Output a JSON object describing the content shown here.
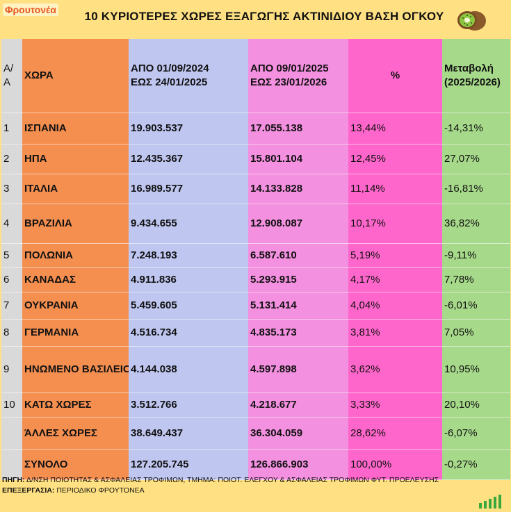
{
  "header": {
    "logo": "Φρουτονέα",
    "title": "10 ΚΥΡΙΟΤΕΡΕΣ ΧΩΡΕΣ ΕΞΑΓΩΓΗΣ ΑΚΤΙΝΙΔΙΟΥ ΒΑΣΗ ΟΓΚΟΥ",
    "icon": "kiwi-icon"
  },
  "table": {
    "columns": {
      "rank": "Α/Α",
      "country": "ΧΩΡΑ",
      "period1_line1": "ΑΠΟ 01/09/2024",
      "period1_line2": "ΕΩΣ 24/01/2025",
      "period2_line1": "ΑΠΟ 09/01/2025",
      "period2_line2": "ΕΩΣ 23/01/2026",
      "share": "%",
      "change_line1": "Μεταβολή",
      "change_line2": "(2025/2026)"
    },
    "rows": [
      {
        "rank": "1",
        "country": "ΙΣΠΑΝΙΑ",
        "p1": "19.903.537",
        "p2": "17.055.138",
        "share": "13,44%",
        "change": "-14,31%"
      },
      {
        "rank": "2",
        "country": "ΗΠΑ",
        "p1": "12.435.367",
        "p2": "15.801.104",
        "share": "12,45%",
        "change": "27,07%"
      },
      {
        "rank": "3",
        "country": "ΙΤΑΛΙΑ",
        "p1": "16.989.577",
        "p2": "14.133.828",
        "share": "11,14%",
        "change": "-16,81%"
      },
      {
        "rank": "4",
        "country": "ΒΡΑΖΙΛΙΑ",
        "p1": "9.434.655",
        "p2": "12.908.087",
        "share": "10,17%",
        "change": "36,82%"
      },
      {
        "rank": "5",
        "country": "ΠΟΛΩΝΙΑ",
        "p1": "7.248.193",
        "p2": "6.587.610",
        "share": "5,19%",
        "change": "-9,11%"
      },
      {
        "rank": "6",
        "country": "ΚΑΝΑΔΑΣ",
        "p1": "4.911.836",
        "p2": "5.293.915",
        "share": "4,17%",
        "change": "7,78%"
      },
      {
        "rank": "7",
        "country": "ΟΥΚΡΑΝΙΑ",
        "p1": "5.459.605",
        "p2": "5.131.414",
        "share": "4,04%",
        "change": "-6,01%"
      },
      {
        "rank": "8",
        "country": "ΓΕΡΜΑΝΙΑ",
        "p1": "4.516.734",
        "p2": "4.835.173",
        "share": "3,81%",
        "change": "7,05%"
      },
      {
        "rank": "9",
        "country": "ΗΝΩΜΕΝΟ ΒΑΣΙΛΕΙΟ",
        "p1": "4.144.038",
        "p2": "4.597.898",
        "share": "3,62%",
        "change": "10,95%"
      },
      {
        "rank": "10",
        "country": "ΚΑΤΩ ΧΩΡΕΣ",
        "p1": "3.512.766",
        "p2": "4.218.677",
        "share": "3,33%",
        "change": "20,10%"
      },
      {
        "rank": "",
        "country": "ΆΛΛΕΣ ΧΩΡΕΣ",
        "p1": "38.649.437",
        "p2": "36.304.059",
        "share": "28,62%",
        "change": "-6,07%"
      },
      {
        "rank": "",
        "country": "ΣΥΝΟΛΟ",
        "p1": "127.205.745",
        "p2": "126.866.903",
        "share": "100,00%",
        "change": "-0,27%"
      }
    ]
  },
  "footer": {
    "source_label": "ΠΗΓΗ:",
    "source_text": "Δ/ΝΣΗ ΠΟΙΟΤΗΤΑΣ & ΑΣΦΑΛΕΙΑΣ ΤΡΟΦΙΜΩΝ, ΤΜΗΜΑ: ΠΟΙΟΤ. ΕΛΕΓΧΟΥ & ΑΣΦΑΛΕΙΑΣ ΤΡΟΦΙΜΩΝ ΦΥΤ. ΠΡΟΕΛΕΥΣΗΣ",
    "processing_label": "ΕΠΕΞΕΡΓΑΣΙΑ:",
    "processing_text": "ΠΕΡΙΟΔΙΚΟ ΦΡΟΥΤΟΝΕΑ",
    "icon": "growth-bars-icon"
  },
  "colors": {
    "background": "#ffe082",
    "rank_col": "#d9d9d9",
    "country_col": "#f58f50",
    "period1_col": "#bfc6f0",
    "period2_col": "#f390e0",
    "share_col": "#ff66cc",
    "change_col": "#a6d98a"
  }
}
